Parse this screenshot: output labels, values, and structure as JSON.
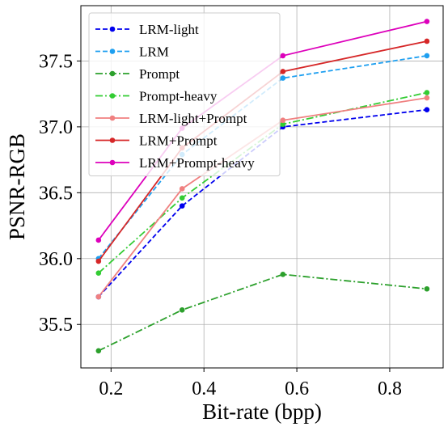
{
  "chart_data": {
    "type": "line",
    "xlabel": "Bit-rate (bpp)",
    "ylabel": "PSNR-RGB",
    "xlim": [
      0.135,
      0.915
    ],
    "ylim": [
      35.17,
      37.92
    ],
    "xticks": [
      0.2,
      0.4,
      0.6,
      0.8
    ],
    "xtick_labels": [
      "0.2",
      "0.4",
      "0.6",
      "0.8"
    ],
    "yticks": [
      35.5,
      36.0,
      36.5,
      37.0,
      37.5
    ],
    "ytick_labels": [
      "35.5",
      "36.0",
      "36.5",
      "37.0",
      "37.5"
    ],
    "grid": true,
    "legend_position": "top-left",
    "series": [
      {
        "name": "LRM-light",
        "color": "#0000ee",
        "dash": "dashed",
        "x": [
          0.173,
          0.353,
          0.57,
          0.88
        ],
        "y": [
          35.71,
          36.4,
          37.0,
          37.13
        ]
      },
      {
        "name": "LRM",
        "color": "#1e9ff0",
        "dash": "dashed",
        "x": [
          0.173,
          0.353,
          0.57,
          0.88
        ],
        "y": [
          36.0,
          36.79,
          37.37,
          37.54
        ]
      },
      {
        "name": "Prompt",
        "color": "#2ca02c",
        "dash": "dashdot",
        "x": [
          0.173,
          0.353,
          0.57,
          0.88
        ],
        "y": [
          35.3,
          35.61,
          35.88,
          35.77
        ]
      },
      {
        "name": "Prompt-heavy",
        "color": "#33cc33",
        "dash": "dashdot",
        "x": [
          0.173,
          0.353,
          0.57,
          0.88
        ],
        "y": [
          35.89,
          36.46,
          37.02,
          37.26
        ]
      },
      {
        "name": "LRM-light+Prompt",
        "color": "#f08080",
        "dash": "solid",
        "x": [
          0.173,
          0.353,
          0.57,
          0.88
        ],
        "y": [
          35.71,
          36.53,
          37.05,
          37.22
        ]
      },
      {
        "name": "LRM+Prompt",
        "color": "#d62728",
        "dash": "solid",
        "x": [
          0.173,
          0.353,
          0.57,
          0.88
        ],
        "y": [
          35.98,
          36.84,
          37.42,
          37.65
        ]
      },
      {
        "name": "LRM+Prompt-heavy",
        "color": "#dd00bb",
        "dash": "solid",
        "x": [
          0.173,
          0.353,
          0.57,
          0.88
        ],
        "y": [
          36.14,
          36.99,
          37.54,
          37.8
        ]
      }
    ]
  }
}
